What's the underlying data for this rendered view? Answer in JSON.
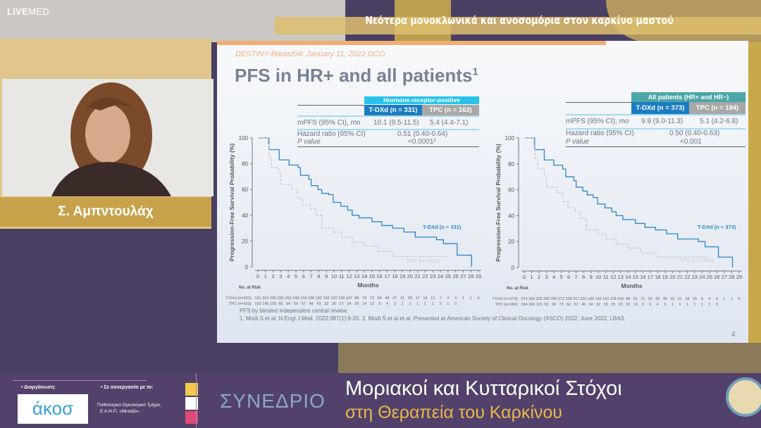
{
  "brand": {
    "logo_bold": "LIVE",
    "logo_light": "MED"
  },
  "banner": {
    "title": "Νεότερα μονοκλωνικά και ανοσομόρια στον καρκίνο μαστού"
  },
  "speaker": {
    "name": "Σ. Αμπντουλάχ"
  },
  "slide": {
    "study": "DESTINY-Breast04: January 11, 2022 DCO",
    "title": "PFS in HR+ and all patients",
    "title_sup": "1",
    "page": "4",
    "footnote1": "PFS by blinded independent central review.",
    "footnote2": "1. Modi S et al. N Engl J Med. 2022;387(1):9-20. 2. Modi S et al et al. Presented at American Society of Clinical Oncology (ASCO) 2022, June 2022, LBA3.",
    "tables": [
      {
        "group": "Hormone receptor-positive",
        "group_color": "#29c3ea",
        "col1": "T-DXd (n = 331)",
        "col2": "TPC (n = 163)",
        "row1_label": "mPFS (95% CI), mo",
        "row1_v1": "10.1 (9.5-11.5)",
        "row1_v2": "5.4 (4.4-7.1)",
        "row2_label": "Hazard ratio (95% CI)",
        "row2_val": "0.51 (0.40-0.64)",
        "row3_label": "P value",
        "row3_val": "<0.0001²"
      },
      {
        "group": "All patients (HR+ and HR−)",
        "group_color": "#4aa6a8",
        "col1": "T-DXd (n = 373)",
        "col2": "TPC (n = 184)",
        "row1_label": "mPFS (95% CI), mo",
        "row1_v1": "9.9 (9.0-11.3)",
        "row1_v2": "5.1 (4.2-6.8)",
        "row2_label": "Hazard ratio (95% CI)",
        "row2_val": "0.50 (0.40-0.63)",
        "row3_label": "P value",
        "row3_val": "<0.001"
      }
    ]
  },
  "chart_data": [
    {
      "type": "line",
      "ylabel": "Progression-Free Survival Probability (%)",
      "xlabel": "Months",
      "xlim": [
        0,
        29
      ],
      "ylim": [
        0,
        100
      ],
      "yticks": [
        0,
        20,
        40,
        60,
        80,
        100
      ],
      "xticks": [
        0,
        1,
        2,
        3,
        4,
        5,
        6,
        7,
        8,
        9,
        10,
        11,
        12,
        13,
        14,
        15,
        16,
        17,
        18,
        19,
        20,
        21,
        22,
        23,
        24,
        25,
        26,
        27,
        28,
        29
      ],
      "risk_title": "No. at Risk",
      "series": [
        {
          "name": "T-DXd (n = 331)",
          "color": "#2f86c6",
          "risk_label": "T-DXd (n=331):",
          "at_risk": [
            331,
            324,
            290,
            265,
            262,
            248,
            218,
            198,
            182,
            165,
            142,
            128,
            107,
            89,
            78,
            73,
            64,
            48,
            37,
            31,
            28,
            17,
            14,
            12,
            7,
            4,
            4,
            1,
            1,
            0
          ],
          "points": [
            [
              0,
              100
            ],
            [
              1.45,
              91
            ],
            [
              2.8,
              83
            ],
            [
              4.1,
              79
            ],
            [
              5.3,
              77
            ],
            [
              5.6,
              71
            ],
            [
              6.7,
              68
            ],
            [
              7,
              63
            ],
            [
              7.9,
              60
            ],
            [
              8.4,
              57
            ],
            [
              9.3,
              56
            ],
            [
              9.9,
              50
            ],
            [
              10.9,
              47
            ],
            [
              11.8,
              44
            ],
            [
              12.4,
              40
            ],
            [
              13.3,
              38
            ],
            [
              15,
              35
            ],
            [
              16.3,
              32
            ],
            [
              17.7,
              30
            ],
            [
              19.2,
              27
            ],
            [
              20.7,
              23
            ],
            [
              23.5,
              21
            ],
            [
              24.4,
              18
            ],
            [
              26.2,
              9
            ],
            [
              28.1,
              9
            ],
            [
              28.1,
              0
            ]
          ]
        },
        {
          "name": "TPC (n = 163)",
          "color": "#c8cacd",
          "risk_label": "TPC (n=163):",
          "at_risk": [
            163,
            146,
            105,
            85,
            84,
            69,
            57,
            48,
            43,
            32,
            30,
            27,
            24,
            20,
            14,
            12,
            8,
            4,
            3,
            2,
            1,
            1,
            1,
            1,
            1,
            1,
            0
          ],
          "points": [
            [
              0,
              100
            ],
            [
              1.3,
              95
            ],
            [
              1.45,
              85
            ],
            [
              1.8,
              77
            ],
            [
              2.7,
              73
            ],
            [
              3,
              64
            ],
            [
              4.4,
              60
            ],
            [
              5.2,
              53
            ],
            [
              5.9,
              48
            ],
            [
              6.9,
              45
            ],
            [
              7.6,
              40
            ],
            [
              8.4,
              30
            ],
            [
              9.9,
              27
            ],
            [
              11,
              23
            ],
            [
              12.4,
              19
            ],
            [
              14,
              16
            ],
            [
              15.8,
              12
            ],
            [
              17.8,
              8
            ],
            [
              25,
              8
            ]
          ]
        }
      ]
    },
    {
      "type": "line",
      "ylabel": "Progression-Free Survival Probability (%)",
      "xlabel": "Months",
      "xlim": [
        0,
        29
      ],
      "ylim": [
        0,
        100
      ],
      "yticks": [
        0,
        20,
        40,
        60,
        80,
        100
      ],
      "xticks": [
        0,
        1,
        2,
        3,
        4,
        5,
        6,
        7,
        8,
        9,
        10,
        11,
        12,
        13,
        14,
        15,
        16,
        17,
        18,
        19,
        20,
        21,
        22,
        23,
        24,
        25,
        26,
        27,
        28,
        29
      ],
      "risk_title": "No. at Risk",
      "series": [
        {
          "name": "T-DXd (n = 373)",
          "color": "#2f86c6",
          "risk_label": "T-DXd (n=373):",
          "at_risk": [
            373,
            365,
            325,
            295,
            290,
            272,
            238,
            217,
            201,
            183,
            156,
            142,
            118,
            100,
            88,
            81,
            71,
            53,
            42,
            35,
            32,
            21,
            18,
            15,
            8,
            4,
            4,
            1,
            1,
            0
          ],
          "points": [
            [
              0,
              100
            ],
            [
              1.4,
              91
            ],
            [
              2.7,
              83
            ],
            [
              4,
              79
            ],
            [
              5.2,
              76
            ],
            [
              5.6,
              70
            ],
            [
              6.7,
              67
            ],
            [
              7,
              62
            ],
            [
              7.9,
              59
            ],
            [
              8.5,
              56
            ],
            [
              9.3,
              54
            ],
            [
              9.9,
              49
            ],
            [
              10.9,
              46
            ],
            [
              11.8,
              43
            ],
            [
              12.4,
              40
            ],
            [
              13.3,
              37
            ],
            [
              15,
              34
            ],
            [
              16.3,
              31
            ],
            [
              17.7,
              29
            ],
            [
              19.2,
              26
            ],
            [
              20.7,
              22
            ],
            [
              23.5,
              20
            ],
            [
              24.4,
              16
            ],
            [
              26.2,
              8
            ],
            [
              28.1,
              8
            ],
            [
              28.1,
              0
            ]
          ]
        },
        {
          "name": "TPC (n = 184)",
          "color": "#c8cacd",
          "risk_label": "TPC (n=184):",
          "at_risk": [
            184,
            166,
            119,
            93,
            90,
            73,
            60,
            51,
            45,
            34,
            32,
            29,
            26,
            22,
            15,
            13,
            9,
            5,
            4,
            3,
            1,
            1,
            1,
            1,
            1,
            1,
            0
          ],
          "points": [
            [
              0,
              100
            ],
            [
              1.3,
              94
            ],
            [
              1.45,
              84
            ],
            [
              1.8,
              76
            ],
            [
              2.7,
              71
            ],
            [
              3,
              62
            ],
            [
              4.4,
              58
            ],
            [
              5.2,
              51
            ],
            [
              5.9,
              46
            ],
            [
              6.9,
              43
            ],
            [
              7.6,
              38
            ],
            [
              8.4,
              29
            ],
            [
              9.9,
              26
            ],
            [
              11,
              22
            ],
            [
              12.4,
              18
            ],
            [
              14,
              15
            ],
            [
              15.8,
              11
            ],
            [
              17.8,
              8
            ],
            [
              25,
              8
            ]
          ]
        }
      ]
    }
  ],
  "bottom": {
    "organizer_label": "• Διοργάνωση:",
    "partner_label": "• Σε συνεργασία με το:",
    "org_logo": "άκοσ",
    "partner_line1": "Παθολογικό Ογκολογικό Τμήμα,",
    "partner_line2": "Ε.Α.Ν.Π. «Μεταξά»",
    "congress": "ΣΥΝΕΔΡΙΟ",
    "title1": "Μοριακοί και Κυτταρικοί Στόχοι",
    "title2": "στη Θεραπεία του Καρκίνου"
  }
}
